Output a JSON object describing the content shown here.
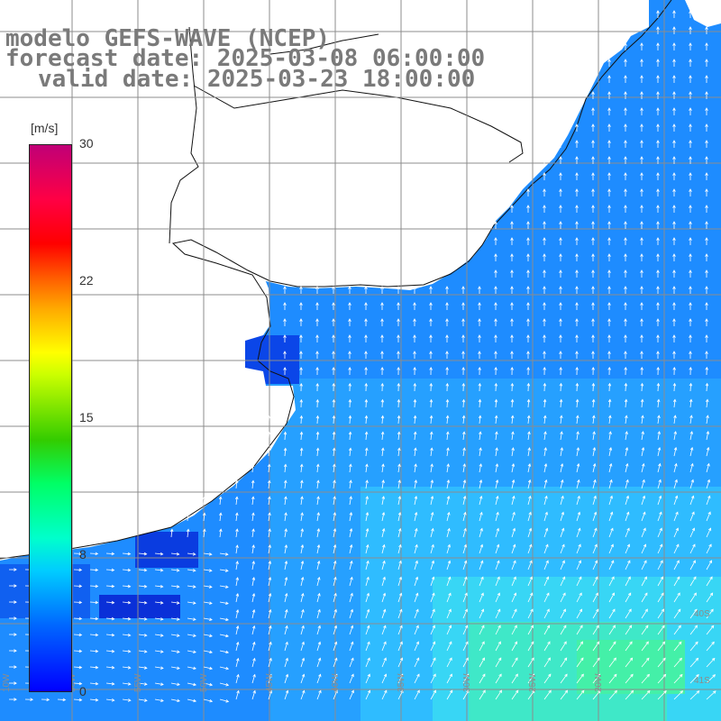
{
  "title": {
    "line1": "modelo GEFS-WAVE (NCEP)",
    "line2": "forecast date: 2025-03-08 06:00:00",
    "line3": "valid date: 2025-03-23 18:00:00"
  },
  "colorbar": {
    "unit": "[m/s]",
    "ticks": [
      "30",
      "22",
      "15",
      "8",
      "0"
    ],
    "tick_values": [
      30,
      22,
      15,
      8,
      0
    ],
    "colors": [
      "#0000ff",
      "#00ccff",
      "#00ff66",
      "#ffff00",
      "#ff6600",
      "#ff0000",
      "#c00077"
    ]
  },
  "map": {
    "land_color": "#ffffff",
    "ocean_base_color": "#1e8cff",
    "grid_color": "#8c8c8c",
    "arrow_color": "#ffffff",
    "bottom_lon_labels": [
      "10W",
      "50W",
      "55W",
      "50W",
      "45W",
      "40W",
      "35W",
      "30W",
      "25W",
      "20W"
    ],
    "right_lat_labels": [
      "40S",
      "41S"
    ]
  }
}
